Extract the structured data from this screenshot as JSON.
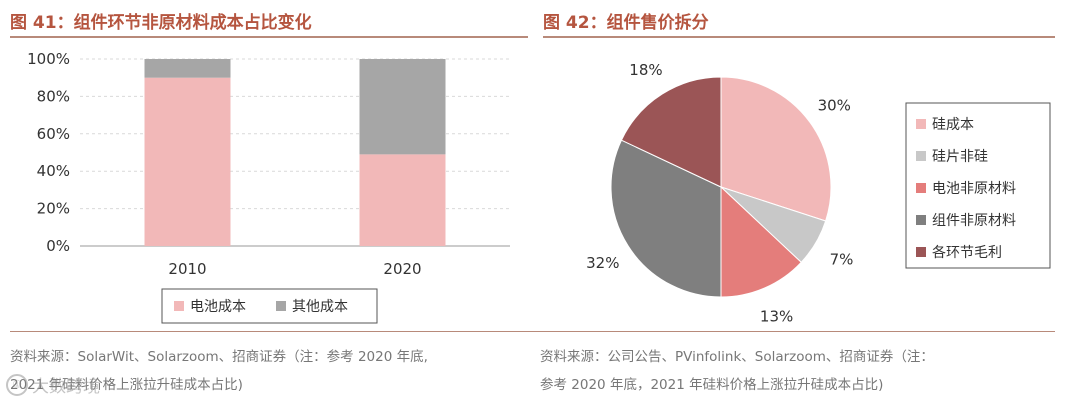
{
  "colors": {
    "title": "#b5553f",
    "rule": "#b88a7a",
    "cell_cost": "#f2b8b8",
    "other_cost": "#a6a6a6",
    "silicon_cost": "#f2b8b8",
    "wafer_non_silicon": "#c8c8c8",
    "cell_non_material": "#e47d7b",
    "module_non_material": "#7f7f7f",
    "margin": "#9b5556"
  },
  "chart_data": [
    {
      "type": "bar",
      "stacked": true,
      "title": "图 41：组件环节非原材料成本占比变化",
      "categories": [
        "2010",
        "2020"
      ],
      "series": [
        {
          "name": "电池成本",
          "values": [
            90,
            49
          ]
        },
        {
          "name": "其他成本",
          "values": [
            10,
            51
          ]
        }
      ],
      "ylim": [
        0,
        100
      ],
      "yticks": [
        "0%",
        "20%",
        "40%",
        "60%",
        "80%",
        "100%"
      ],
      "ytick_values": [
        0,
        20,
        40,
        60,
        80,
        100
      ],
      "xlabel": "",
      "ylabel": "",
      "grid": true,
      "legend": "bottom"
    },
    {
      "type": "pie",
      "title": "图 42：组件售价拆分",
      "labels": [
        "硅成本",
        "硅片非硅",
        "电池非原材料",
        "组件非原材料",
        "各环节毛利"
      ],
      "values": [
        30,
        7,
        13,
        32,
        18
      ],
      "value_labels": [
        "30%",
        "7%",
        "13%",
        "32%",
        "18%"
      ],
      "legend": "right"
    }
  ],
  "source": {
    "left_line1": "资料来源：SolarWit、Solarzoom、招商证券（注：参考 2020 年底,",
    "left_line2": "2021 年硅料价格上涨拉升硅成本占比)",
    "right_line1": "资料来源：公司公告、PVinfolink、Solarzoom、招商证券（注：",
    "right_line2": "参考 2020 年底，2021 年硅料价格上涨拉升硅成本占比)"
  },
  "watermark": {
    "text": "大数跨境",
    "glyph": "①"
  }
}
